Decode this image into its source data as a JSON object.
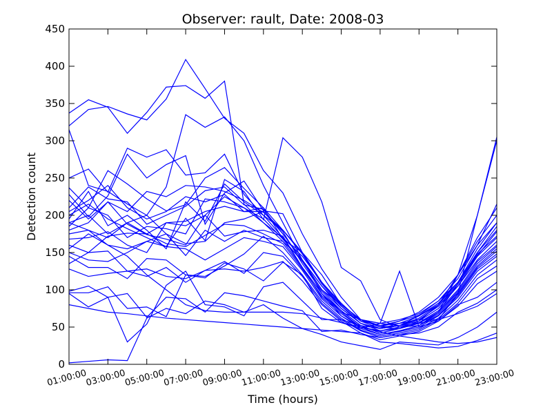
{
  "chart_data": {
    "type": "line",
    "title": "Observer: rault, Date: 2008-03",
    "xlabel": "Time (hours)",
    "ylabel": "Detection count",
    "xlim": [
      1,
      23
    ],
    "ylim": [
      0,
      450
    ],
    "x_tick_labels": [
      "01:00:00",
      "03:00:00",
      "05:00:00",
      "07:00:00",
      "09:00:00",
      "11:00:00",
      "13:00:00",
      "15:00:00",
      "17:00:00",
      "19:00:00",
      "21:00:00",
      "23:00:00"
    ],
    "y_tick_labels": [
      "0",
      "50",
      "100",
      "150",
      "200",
      "250",
      "300",
      "350",
      "400",
      "450"
    ],
    "line_color": "#0000ff",
    "grid": false,
    "legend": "none",
    "x": [
      1,
      2,
      3,
      4,
      5,
      6,
      7,
      8,
      9,
      10,
      11,
      12,
      13,
      14,
      15,
      16,
      17,
      18,
      19,
      20,
      21,
      22,
      23
    ],
    "series": [
      {
        "values": [
          337,
          355,
          345,
          310,
          338,
          372,
          374,
          357,
          380,
          215,
          190,
          170,
          130,
          95,
          70,
          60,
          55,
          52,
          55,
          60,
          95,
          200,
          305
        ]
      },
      {
        "values": [
          320,
          342,
          346,
          336,
          328,
          356,
          409,
          370,
          330,
          310,
          260,
          230,
          175,
          128,
          90,
          60,
          50,
          48,
          55,
          70,
          120,
          200,
          300
        ]
      },
      {
        "values": [
          315,
          240,
          232,
          215,
          200,
          238,
          335,
          318,
          332,
          300,
          240,
          190,
          140,
          95,
          65,
          50,
          45,
          48,
          58,
          80,
          120,
          170,
          210
        ]
      },
      {
        "values": [
          250,
          262,
          231,
          290,
          278,
          288,
          254,
          257,
          282,
          228,
          200,
          180,
          150,
          110,
          80,
          60,
          55,
          60,
          68,
          85,
          115,
          160,
          215
        ]
      },
      {
        "values": [
          237,
          210,
          260,
          242,
          222,
          206,
          214,
          250,
          264,
          236,
          210,
          168,
          150,
          110,
          80,
          60,
          50,
          52,
          65,
          80,
          120,
          165,
          200
        ]
      },
      {
        "values": [
          228,
          198,
          226,
          282,
          250,
          268,
          280,
          188,
          230,
          246,
          206,
          202,
          150,
          120,
          80,
          60,
          52,
          58,
          70,
          90,
          120,
          160,
          190
        ]
      },
      {
        "values": [
          220,
          195,
          218,
          205,
          232,
          225,
          240,
          238,
          232,
          220,
          204,
          180,
          150,
          110,
          80,
          60,
          52,
          55,
          65,
          82,
          110,
          155,
          190
        ]
      },
      {
        "values": [
          210,
          238,
          222,
          218,
          188,
          200,
          212,
          233,
          238,
          214,
          208,
          175,
          140,
          100,
          80,
          60,
          50,
          58,
          66,
          85,
          110,
          150,
          185
        ]
      },
      {
        "values": [
          205,
          220,
          240,
          210,
          195,
          205,
          225,
          218,
          228,
          205,
          210,
          180,
          148,
          108,
          78,
          55,
          48,
          52,
          62,
          80,
          110,
          150,
          180
        ]
      },
      {
        "values": [
          200,
          215,
          195,
          182,
          170,
          158,
          196,
          166,
          248,
          232,
          194,
          304,
          278,
          218,
          130,
          112,
          60,
          50,
          52,
          70,
          108,
          146,
          178
        ]
      },
      {
        "values": [
          195,
          232,
          186,
          200,
          180,
          155,
          218,
          192,
          242,
          218,
          200,
          170,
          145,
          110,
          82,
          58,
          52,
          55,
          60,
          78,
          108,
          148,
          172
        ]
      },
      {
        "values": [
          190,
          200,
          175,
          190,
          175,
          190,
          192,
          205,
          212,
          205,
          205,
          175,
          140,
          105,
          78,
          58,
          48,
          52,
          58,
          75,
          105,
          145,
          170
        ]
      },
      {
        "values": [
          185,
          210,
          200,
          170,
          185,
          182,
          175,
          222,
          218,
          210,
          190,
          165,
          140,
          105,
          75,
          55,
          48,
          55,
          60,
          78,
          105,
          140,
          165
        ]
      },
      {
        "values": [
          180,
          190,
          218,
          188,
          174,
          168,
          160,
          200,
          225,
          210,
          195,
          168,
          138,
          100,
          75,
          55,
          45,
          50,
          56,
          72,
          100,
          138,
          160
        ]
      },
      {
        "values": [
          175,
          180,
          170,
          190,
          200,
          175,
          162,
          165,
          190,
          195,
          205,
          178,
          135,
          98,
          72,
          52,
          42,
          48,
          55,
          70,
          98,
          135,
          158
        ]
      },
      {
        "values": [
          168,
          170,
          178,
          160,
          150,
          190,
          186,
          200,
          172,
          178,
          180,
          172,
          130,
          95,
          72,
          52,
          42,
          48,
          55,
          70,
          96,
          132,
          155
        ]
      },
      {
        "values": [
          160,
          150,
          172,
          176,
          175,
          162,
          158,
          173,
          188,
          186,
          175,
          162,
          128,
          92,
          70,
          50,
          40,
          45,
          52,
          68,
          94,
          130,
          152
        ]
      },
      {
        "values": [
          155,
          175,
          160,
          155,
          165,
          175,
          146,
          180,
          165,
          180,
          170,
          165,
          130,
          90,
          68,
          50,
          40,
          45,
          52,
          66,
          92,
          128,
          148
        ]
      },
      {
        "values": [
          150,
          140,
          138,
          150,
          165,
          158,
          155,
          140,
          155,
          170,
          165,
          158,
          126,
          88,
          65,
          48,
          40,
          44,
          50,
          65,
          90,
          125,
          145
        ]
      },
      {
        "values": [
          145,
          130,
          130,
          115,
          142,
          140,
          120,
          118,
          132,
          148,
          172,
          150,
          120,
          85,
          62,
          46,
          38,
          42,
          48,
          62,
          86,
          120,
          140
        ]
      },
      {
        "values": [
          135,
          150,
          152,
          125,
          118,
          130,
          110,
          126,
          138,
          122,
          150,
          145,
          118,
          82,
          60,
          45,
          36,
          40,
          46,
          60,
          82,
          115,
          132
        ]
      },
      {
        "values": [
          128,
          118,
          122,
          125,
          128,
          118,
          115,
          126,
          128,
          125,
          130,
          138,
          112,
          80,
          58,
          42,
          33,
          38,
          44,
          58,
          78,
          108,
          125
        ]
      },
      {
        "values": [
          96,
          96,
          104,
          75,
          77,
          64,
          120,
          116,
          136,
          128,
          112,
          137,
          120,
          75,
          56,
          48,
          55,
          125,
          50,
          58,
          80,
          90,
          110
        ]
      },
      {
        "values": [
          95,
          77,
          90,
          95,
          63,
          90,
          88,
          70,
          96,
          92,
          85,
          78,
          72,
          44,
          46,
          40,
          36,
          40,
          42,
          50,
          70,
          82,
          100
        ]
      },
      {
        "values": [
          98,
          105,
          90,
          30,
          54,
          106,
          125,
          80,
          77,
          65,
          104,
          110,
          85,
          60,
          60,
          52,
          48,
          52,
          60,
          60,
          68,
          78,
          95
        ]
      },
      {
        "values": [
          2,
          4,
          6,
          5,
          62,
          75,
          68,
          85,
          80,
          70,
          80,
          62,
          48,
          40,
          30,
          25,
          20,
          30,
          28,
          26,
          36,
          50,
          70
        ]
      },
      {
        "values": [
          80,
          75,
          70,
          68,
          65,
          62,
          60,
          58,
          56,
          54,
          52,
          50,
          48,
          46,
          44,
          42,
          30,
          28,
          25,
          22,
          24,
          32,
          42
        ]
      },
      {
        "values": [
          190,
          180,
          160,
          145,
          120,
          100,
          80,
          72,
          70,
          70,
          70,
          70,
          68,
          62,
          56,
          50,
          44,
          38,
          34,
          30,
          28,
          30,
          36
        ]
      }
    ]
  }
}
